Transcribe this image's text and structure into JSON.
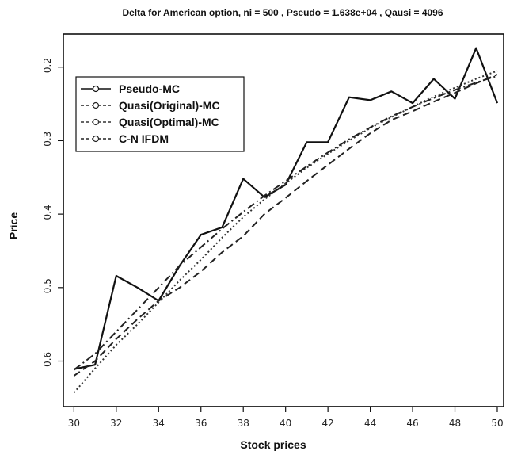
{
  "chart_data": {
    "type": "line",
    "title": "Delta for American option, ni = 500 , Pseudo = 1.638e+04 , Qausi = 4096",
    "xlabel": "Stock prices",
    "ylabel": "Price",
    "xlim": [
      29.5,
      50.3
    ],
    "ylim": [
      -0.662,
      -0.155
    ],
    "x_ticks": [
      30,
      32,
      34,
      36,
      38,
      40,
      42,
      44,
      46,
      48,
      50
    ],
    "y_ticks": [
      -0.6,
      -0.5,
      -0.4,
      -0.3,
      -0.2
    ],
    "y_tick_labels": [
      "-0.6",
      "-0.5",
      "-0.4",
      "-0.3",
      "-0.2"
    ],
    "x": [
      30,
      31,
      32,
      33,
      34,
      35,
      36,
      37,
      38,
      39,
      40,
      41,
      42,
      43,
      44,
      45,
      46,
      47,
      48,
      49,
      50
    ],
    "legend_position": "top-left",
    "series": [
      {
        "name": "Pseudo-MC",
        "color": "#111111",
        "dash": "",
        "values": [
          -0.611,
          -0.605,
          -0.484,
          -0.5,
          -0.518,
          -0.47,
          -0.428,
          -0.418,
          -0.352,
          -0.377,
          -0.36,
          -0.302,
          -0.302,
          -0.241,
          -0.245,
          -0.233,
          -0.249,
          -0.216,
          -0.243,
          -0.174,
          -0.249
        ]
      },
      {
        "name": "Quasi(Original)-MC",
        "color": "#222222",
        "dash": "9,5",
        "values": [
          -0.62,
          -0.6,
          -0.57,
          -0.543,
          -0.518,
          -0.5,
          -0.478,
          -0.452,
          -0.43,
          -0.4,
          -0.378,
          -0.355,
          -0.333,
          -0.311,
          -0.29,
          -0.272,
          -0.26,
          -0.247,
          -0.235,
          -0.222,
          -0.21
        ]
      },
      {
        "name": "Quasi(Optimal)-MC",
        "color": "#333333",
        "dash": "2,3",
        "values": [
          -0.643,
          -0.61,
          -0.578,
          -0.55,
          -0.52,
          -0.49,
          -0.462,
          -0.432,
          -0.404,
          -0.38,
          -0.358,
          -0.337,
          -0.318,
          -0.3,
          -0.283,
          -0.268,
          -0.254,
          -0.24,
          -0.228,
          -0.216,
          -0.205
        ]
      },
      {
        "name": "C-N IFDM",
        "color": "#222222",
        "dash": "10,4,2,4",
        "values": [
          -0.612,
          -0.59,
          -0.56,
          -0.53,
          -0.5,
          -0.47,
          -0.445,
          -0.42,
          -0.397,
          -0.375,
          -0.355,
          -0.335,
          -0.316,
          -0.298,
          -0.282,
          -0.267,
          -0.254,
          -0.242,
          -0.231,
          -0.221,
          -0.212
        ]
      }
    ]
  }
}
